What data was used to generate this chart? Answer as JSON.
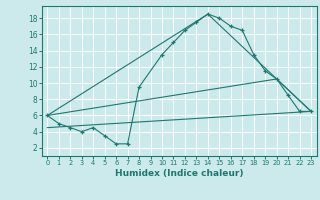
{
  "line1_x": [
    0,
    1,
    2,
    3,
    4,
    5,
    6,
    7,
    8,
    10,
    11,
    12,
    13,
    14,
    15,
    16,
    17,
    18,
    19,
    20,
    21,
    22,
    23
  ],
  "line1_y": [
    6.0,
    5.0,
    4.5,
    4.0,
    4.5,
    3.5,
    2.5,
    2.5,
    9.5,
    13.5,
    15.0,
    16.5,
    17.5,
    18.5,
    18.0,
    17.0,
    16.5,
    13.5,
    11.5,
    10.5,
    8.5,
    6.5,
    6.5
  ],
  "line2_x": [
    0,
    20,
    23
  ],
  "line2_y": [
    6.0,
    10.5,
    6.5
  ],
  "line3_x": [
    0,
    14,
    23
  ],
  "line3_y": [
    6.0,
    18.5,
    6.5
  ],
  "line4_x": [
    0,
    23
  ],
  "line4_y": [
    4.5,
    6.5
  ],
  "color": "#1a7a6e",
  "bg_color": "#cce9ec",
  "grid_color": "#ffffff",
  "xlabel": "Humidex (Indice chaleur)",
  "xlim": [
    -0.5,
    23.5
  ],
  "ylim": [
    1.0,
    19.5
  ],
  "xticks": [
    0,
    1,
    2,
    3,
    4,
    5,
    6,
    7,
    8,
    9,
    10,
    11,
    12,
    13,
    14,
    15,
    16,
    17,
    18,
    19,
    20,
    21,
    22,
    23
  ],
  "yticks": [
    2,
    4,
    6,
    8,
    10,
    12,
    14,
    16,
    18
  ]
}
